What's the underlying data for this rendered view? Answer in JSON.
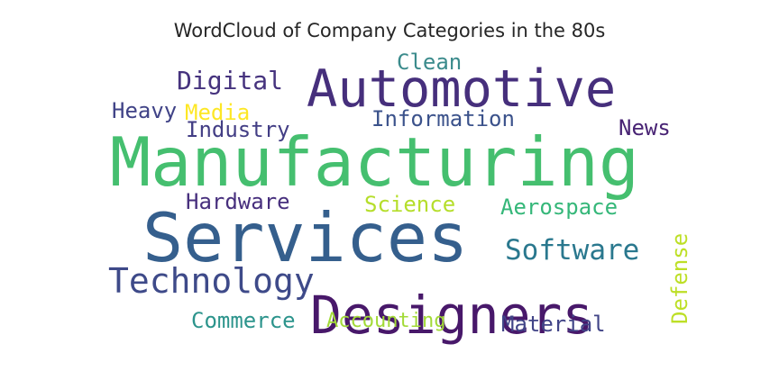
{
  "chart_data": {
    "type": "wordcloud",
    "title": "WordCloud of Company Categories in the 80s",
    "words": [
      {
        "text": "Manufacturing",
        "weight": 1.0,
        "color": "#45bf6f"
      },
      {
        "text": "Services",
        "weight": 0.86,
        "color": "#355f8d"
      },
      {
        "text": "Automotive",
        "weight": 0.72,
        "color": "#462f7c"
      },
      {
        "text": "Designers",
        "weight": 0.7,
        "color": "#48186a"
      },
      {
        "text": "Technology",
        "weight": 0.46,
        "color": "#3e4a89"
      },
      {
        "text": "Software",
        "weight": 0.42,
        "color": "#2a788e"
      },
      {
        "text": "Digital",
        "weight": 0.38,
        "color": "#46337e"
      },
      {
        "text": "Clean",
        "weight": 0.34,
        "color": "#3b8b8c"
      },
      {
        "text": "Information",
        "weight": 0.34,
        "color": "#3b528b"
      },
      {
        "text": "Heavy",
        "weight": 0.34,
        "color": "#404387"
      },
      {
        "text": "Media",
        "weight": 0.34,
        "color": "#fde725"
      },
      {
        "text": "Industry",
        "weight": 0.34,
        "color": "#433e85"
      },
      {
        "text": "News",
        "weight": 0.34,
        "color": "#482374"
      },
      {
        "text": "Hardware",
        "weight": 0.32,
        "color": "#472f7d"
      },
      {
        "text": "Science",
        "weight": 0.34,
        "color": "#b5de2b"
      },
      {
        "text": "Aerospace",
        "weight": 0.34,
        "color": "#35b779"
      },
      {
        "text": "Commerce",
        "weight": 0.34,
        "color": "#2c948c"
      },
      {
        "text": "Accounting",
        "weight": 0.3,
        "color": "#a2da37"
      },
      {
        "text": "Material",
        "weight": 0.34,
        "color": "#414487"
      },
      {
        "text": "Defense",
        "weight": 0.34,
        "color": "#bddf26",
        "rotated": true
      }
    ]
  }
}
